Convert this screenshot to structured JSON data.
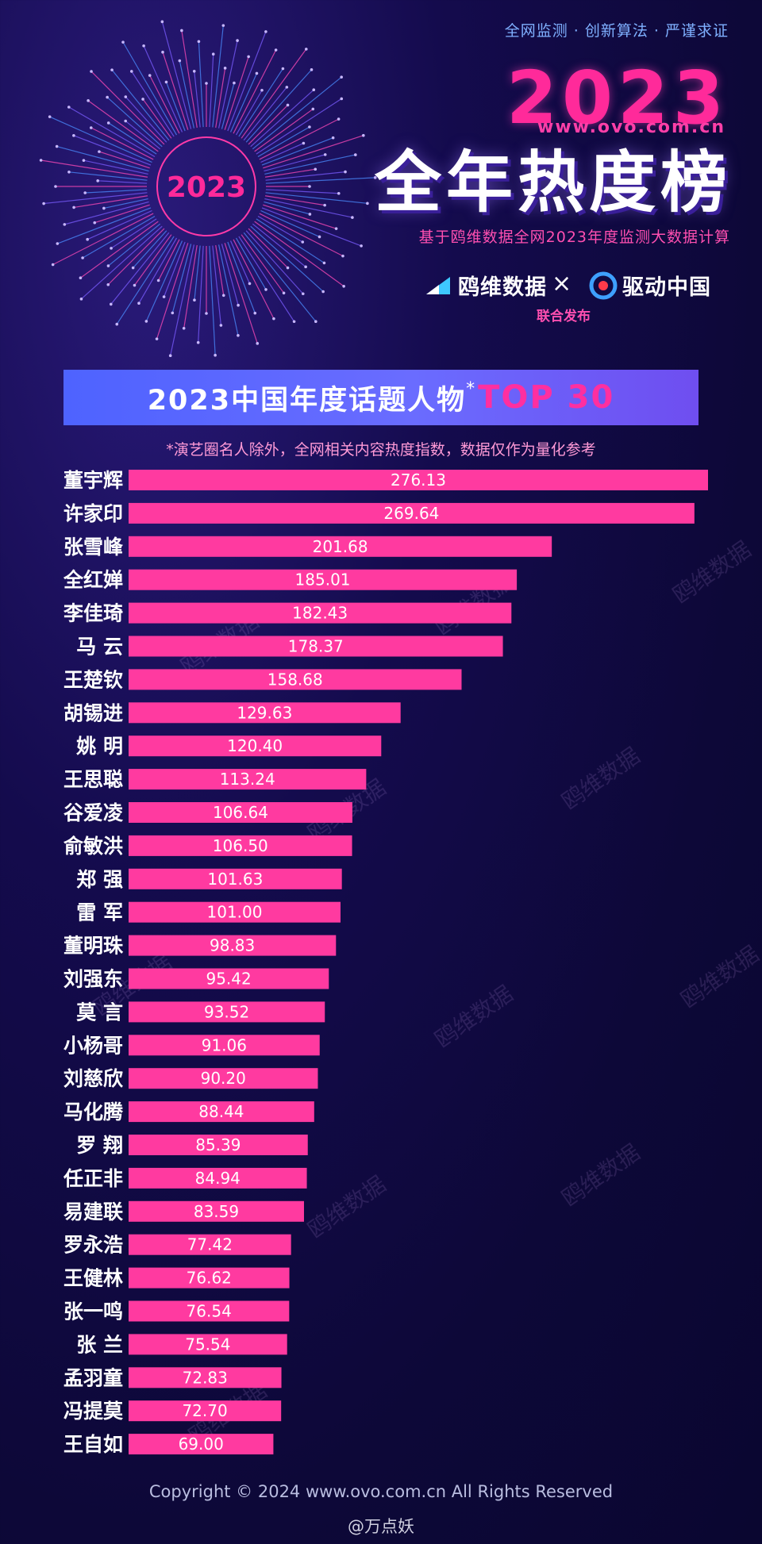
{
  "header": {
    "tagline": "全网监测 · 创新算法 · 严谨求证",
    "year": "2023",
    "site": "www.ovo.com.cn",
    "title": "全年热度榜",
    "subtitle": "基于鸥维数据全网2023年度监测大数据计算",
    "burst_badge": "2023",
    "logo_a": "鸥维数据",
    "times": "×",
    "logo_b": "驱动中国",
    "joint_release": "联合发布"
  },
  "watermark": "鸥维数据",
  "footer": {
    "copyright": "Copyright © 2024  www.ovo.com.cn All Rights Reserved",
    "credit": "@万点妖"
  },
  "colors": {
    "bar": "#ff3aa0",
    "accent": "#ff2a9a",
    "header_band": "#5a64ff"
  },
  "chart_data": {
    "type": "bar",
    "orientation": "horizontal",
    "title_main": "2023中国年度话题人物",
    "title_star": "*",
    "title_top": "TOP 30",
    "note": "*演艺圈名人除外，全网相关内容热度指数，数据仅作为量化参考",
    "xlim": [
      0,
      276.13
    ],
    "categories": [
      "董宇辉",
      "许家印",
      "张雪峰",
      "全红婵",
      "李佳琦",
      "马 云",
      "王楚钦",
      "胡锡进",
      "姚 明",
      "王思聪",
      "谷爱凌",
      "俞敏洪",
      "郑 强",
      "雷 军",
      "董明珠",
      "刘强东",
      "莫 言",
      "小杨哥",
      "刘慈欣",
      "马化腾",
      "罗 翔",
      "任正非",
      "易建联",
      "罗永浩",
      "王健林",
      "张一鸣",
      "张 兰",
      "孟羽童",
      "冯提莫",
      "王自如"
    ],
    "values": [
      276.13,
      269.64,
      201.68,
      185.01,
      182.43,
      178.37,
      158.68,
      129.63,
      120.4,
      113.24,
      106.64,
      106.5,
      101.63,
      101.0,
      98.83,
      95.42,
      93.52,
      91.06,
      90.2,
      88.44,
      85.39,
      84.94,
      83.59,
      77.42,
      76.62,
      76.54,
      75.54,
      72.83,
      72.7,
      69.0
    ],
    "labels": [
      "276.13",
      "269.64",
      "201.68",
      "185.01",
      "182.43",
      "178.37",
      "158.68",
      "129.63",
      "120.40",
      "113.24",
      "106.64",
      "106.50",
      "101.63",
      "101.00",
      "98.83",
      "95.42",
      "93.52",
      "91.06",
      "90.20",
      "88.44",
      "85.39",
      "84.94",
      "83.59",
      "77.42",
      "76.62",
      "76.54",
      "75.54",
      "72.83",
      "72.70",
      "69.00"
    ]
  }
}
